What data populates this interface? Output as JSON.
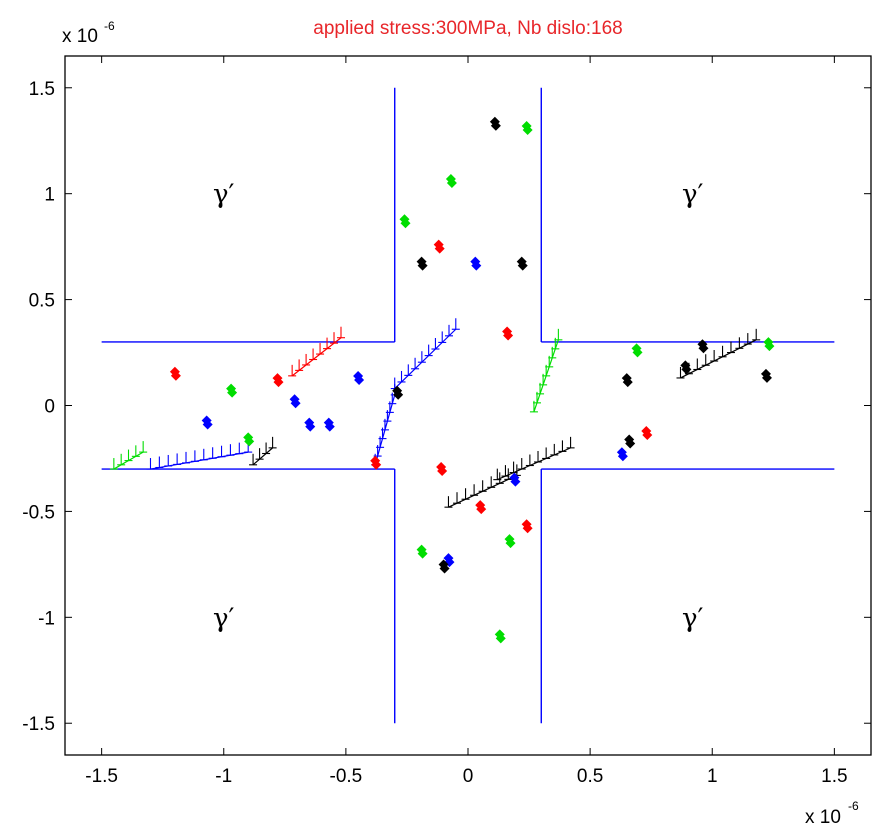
{
  "chart_data": {
    "type": "scatter",
    "title": "applied stress:300MPa, Nb dislo:168",
    "xlabel": "",
    "ylabel": "",
    "xlim": [
      -1.65,
      1.65
    ],
    "ylim": [
      -1.65,
      1.65
    ],
    "x_ticks": [
      -1.5,
      -1,
      -0.5,
      0,
      0.5,
      1,
      1.5
    ],
    "y_ticks": [
      -1.5,
      -1,
      -0.5,
      0,
      0.5,
      1,
      1.5
    ],
    "x_tick_labels": [
      "-1.5",
      "-1",
      "-0.5",
      "0",
      "0.5",
      "1",
      "1.5"
    ],
    "y_tick_labels": [
      "-1.5",
      "-1",
      "-0.5",
      "0",
      "0.5",
      "1",
      "1.5"
    ],
    "x_exponent": {
      "base": "x 10",
      "power": "-6"
    },
    "y_exponent": {
      "base": "x 10",
      "power": "-6"
    },
    "grid": false,
    "colors": {
      "title": "#e8262a",
      "axis": "#000000",
      "channel": "#0000ff",
      "red": "#ff0000",
      "green": "#00dd00",
      "blue": "#0000ff",
      "black": "#000000"
    },
    "channel_lines": [
      {
        "x": [
          -1.5,
          -0.3
        ],
        "y": [
          0.3,
          0.3
        ]
      },
      {
        "x": [
          -0.3,
          -0.3
        ],
        "y": [
          0.3,
          1.5
        ]
      },
      {
        "x": [
          0.3,
          0.3
        ],
        "y": [
          1.5,
          0.3
        ]
      },
      {
        "x": [
          0.3,
          1.5
        ],
        "y": [
          0.3,
          0.3
        ]
      },
      {
        "x": [
          -1.5,
          -0.3
        ],
        "y": [
          -0.3,
          -0.3
        ]
      },
      {
        "x": [
          -0.3,
          -0.3
        ],
        "y": [
          -0.3,
          -1.5
        ]
      },
      {
        "x": [
          0.3,
          0.3
        ],
        "y": [
          -1.5,
          -0.3
        ]
      },
      {
        "x": [
          0.3,
          1.5
        ],
        "y": [
          -0.3,
          -0.3
        ]
      }
    ],
    "annotations": [
      {
        "text": "γ′",
        "x": -1.0,
        "y": 1.0
      },
      {
        "text": "γ′",
        "x": 0.92,
        "y": 1.0
      },
      {
        "text": "γ′",
        "x": -1.0,
        "y": -1.0
      },
      {
        "text": "γ′",
        "x": 0.92,
        "y": -1.0
      }
    ],
    "series": [
      {
        "color": "red",
        "points": [
          [
            -1.2,
            0.15
          ],
          [
            -0.78,
            0.12
          ],
          [
            -0.12,
            0.75
          ],
          [
            -0.38,
            -0.27
          ],
          [
            -0.11,
            -0.3
          ],
          [
            0.05,
            -0.48
          ],
          [
            0.24,
            -0.57
          ],
          [
            0.73,
            -0.13
          ],
          [
            0.16,
            0.34
          ]
        ]
      },
      {
        "color": "green",
        "points": [
          [
            0.24,
            1.31
          ],
          [
            -0.07,
            1.06
          ],
          [
            -0.26,
            0.87
          ],
          [
            -0.97,
            0.07
          ],
          [
            -0.9,
            -0.16
          ],
          [
            -0.19,
            -0.69
          ],
          [
            0.17,
            -0.64
          ],
          [
            0.13,
            -1.09
          ],
          [
            0.69,
            0.26
          ],
          [
            1.23,
            0.29
          ]
        ]
      },
      {
        "color": "blue",
        "points": [
          [
            0.03,
            0.67
          ],
          [
            -0.45,
            0.13
          ],
          [
            -0.71,
            0.02
          ],
          [
            -1.07,
            -0.08
          ],
          [
            -0.65,
            -0.09
          ],
          [
            -0.57,
            -0.09
          ],
          [
            0.63,
            -0.23
          ],
          [
            -0.08,
            -0.73
          ],
          [
            0.19,
            -0.35
          ]
        ]
      },
      {
        "color": "black",
        "points": [
          [
            0.11,
            1.33
          ],
          [
            -0.19,
            0.67
          ],
          [
            0.22,
            0.67
          ],
          [
            -0.29,
            0.06
          ],
          [
            0.65,
            0.12
          ],
          [
            0.96,
            0.28
          ],
          [
            0.89,
            0.18
          ],
          [
            1.22,
            0.14
          ],
          [
            0.66,
            -0.17
          ],
          [
            -0.1,
            -0.76
          ]
        ]
      }
    ],
    "dislocation_pileups": [
      {
        "color": "red",
        "x": [
          -0.72,
          -0.52
        ],
        "y": [
          0.14,
          0.32
        ]
      },
      {
        "color": "blue",
        "x": [
          -0.3,
          -0.05
        ],
        "y": [
          0.08,
          0.36
        ]
      },
      {
        "color": "blue",
        "x": [
          -0.38,
          -0.3
        ],
        "y": [
          -0.28,
          0.05
        ]
      },
      {
        "color": "black",
        "x": [
          -0.08,
          0.2
        ],
        "y": [
          -0.48,
          -0.33
        ]
      },
      {
        "color": "black",
        "x": [
          0.12,
          0.42
        ],
        "y": [
          -0.35,
          -0.2
        ]
      },
      {
        "color": "green",
        "x": [
          0.27,
          0.37
        ],
        "y": [
          -0.03,
          0.31
        ]
      },
      {
        "color": "black",
        "x": [
          0.87,
          1.18
        ],
        "y": [
          0.13,
          0.31
        ]
      },
      {
        "color": "blue",
        "x": [
          -1.3,
          -0.9
        ],
        "y": [
          -0.3,
          -0.22
        ]
      },
      {
        "color": "green",
        "x": [
          -1.45,
          -1.33
        ],
        "y": [
          -0.3,
          -0.22
        ]
      },
      {
        "color": "black",
        "x": [
          -0.88,
          -0.8
        ],
        "y": [
          -0.28,
          -0.2
        ]
      }
    ]
  }
}
